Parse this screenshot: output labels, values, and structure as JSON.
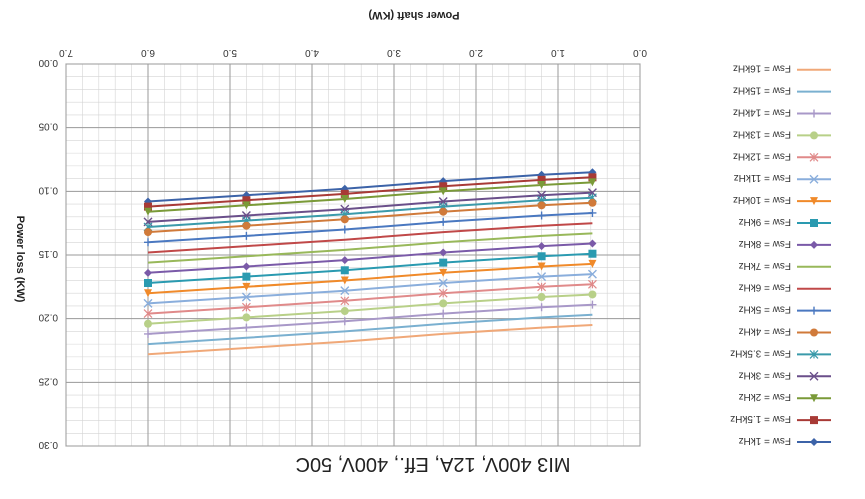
{
  "chart_data": {
    "type": "line",
    "orientation": "rotated-180",
    "title": "MI3 400V, 12A, Eff., 400V, 50C",
    "xlabel": "Power shaft (KW)",
    "ylabel": "Power loss (KW)",
    "xlim": [
      0.0,
      7.0
    ],
    "ylim": [
      0.0,
      0.3
    ],
    "x_ticks": [
      "0.0",
      "1.0",
      "2.0",
      "3.0",
      "4.0",
      "5.0",
      "6.0",
      "7.0"
    ],
    "y_ticks": [
      "0.00",
      "0.05",
      "0.10",
      "0.15",
      "0.20",
      "0.25",
      "0.30"
    ],
    "grid": true,
    "legend_position": "left",
    "x": [
      0.58,
      1.2,
      2.4,
      3.6,
      4.8,
      6.0
    ],
    "series": [
      {
        "name": "Fsw = 1kHz",
        "color": "#3c63a8",
        "marker": "diamond",
        "values": [
          0.085,
          0.087,
          0.092,
          0.098,
          0.103,
          0.108
        ]
      },
      {
        "name": "Fsw = 1.5kHz",
        "color": "#a83a36",
        "marker": "square",
        "values": [
          0.089,
          0.091,
          0.096,
          0.102,
          0.107,
          0.112
        ]
      },
      {
        "name": "Fsw = 2kHz",
        "color": "#7a9a38",
        "marker": "triangle",
        "values": [
          0.093,
          0.095,
          0.1,
          0.106,
          0.111,
          0.116
        ]
      },
      {
        "name": "Fsw = 3kHz",
        "color": "#6a4f8a",
        "marker": "x",
        "values": [
          0.101,
          0.103,
          0.108,
          0.114,
          0.119,
          0.124
        ]
      },
      {
        "name": "Fsw = 3.5kHz",
        "color": "#3a9aaa",
        "marker": "star",
        "values": [
          0.105,
          0.107,
          0.112,
          0.118,
          0.123,
          0.128
        ]
      },
      {
        "name": "Fsw = 4kHz",
        "color": "#d07a3a",
        "marker": "circle",
        "values": [
          0.109,
          0.111,
          0.116,
          0.122,
          0.127,
          0.132
        ]
      },
      {
        "name": "Fsw = 5kHz",
        "color": "#4a78c0",
        "marker": "plus",
        "values": [
          0.117,
          0.119,
          0.124,
          0.13,
          0.135,
          0.14
        ]
      },
      {
        "name": "Fsw = 6kHz",
        "color": "#c04848",
        "marker": "none",
        "values": [
          0.125,
          0.127,
          0.132,
          0.138,
          0.143,
          0.148
        ]
      },
      {
        "name": "Fsw = 7kHz",
        "color": "#98b85a",
        "marker": "none",
        "values": [
          0.133,
          0.135,
          0.14,
          0.146,
          0.151,
          0.156
        ]
      },
      {
        "name": "Fsw = 8kHz",
        "color": "#7a5aa8",
        "marker": "diamond",
        "values": [
          0.141,
          0.143,
          0.148,
          0.154,
          0.159,
          0.164
        ]
      },
      {
        "name": "Fsw = 9kHz",
        "color": "#2a9ab0",
        "marker": "square",
        "values": [
          0.149,
          0.151,
          0.156,
          0.162,
          0.167,
          0.172
        ]
      },
      {
        "name": "Fsw = 10kHz",
        "color": "#f08a2a",
        "marker": "triangle",
        "values": [
          0.157,
          0.159,
          0.164,
          0.17,
          0.175,
          0.18
        ]
      },
      {
        "name": "Fsw = 11kHz",
        "color": "#8aaedc",
        "marker": "x",
        "values": [
          0.165,
          0.167,
          0.172,
          0.178,
          0.183,
          0.188
        ]
      },
      {
        "name": "Fsw = 12kHz",
        "color": "#e08a8a",
        "marker": "star",
        "values": [
          0.173,
          0.175,
          0.18,
          0.186,
          0.191,
          0.196
        ]
      },
      {
        "name": "Fsw = 13kHz",
        "color": "#b8d088",
        "marker": "circle",
        "values": [
          0.181,
          0.183,
          0.188,
          0.194,
          0.199,
          0.204
        ]
      },
      {
        "name": "Fsw = 14kHz",
        "color": "#a898c8",
        "marker": "plus",
        "values": [
          0.189,
          0.191,
          0.196,
          0.202,
          0.207,
          0.212
        ]
      },
      {
        "name": "Fsw = 15kHz",
        "color": "#7ab0d0",
        "marker": "none",
        "values": [
          0.197,
          0.199,
          0.204,
          0.21,
          0.215,
          0.22
        ]
      },
      {
        "name": "Fsw = 16kHz",
        "color": "#f0a878",
        "marker": "none",
        "values": [
          0.205,
          0.207,
          0.212,
          0.218,
          0.223,
          0.228
        ]
      }
    ]
  }
}
